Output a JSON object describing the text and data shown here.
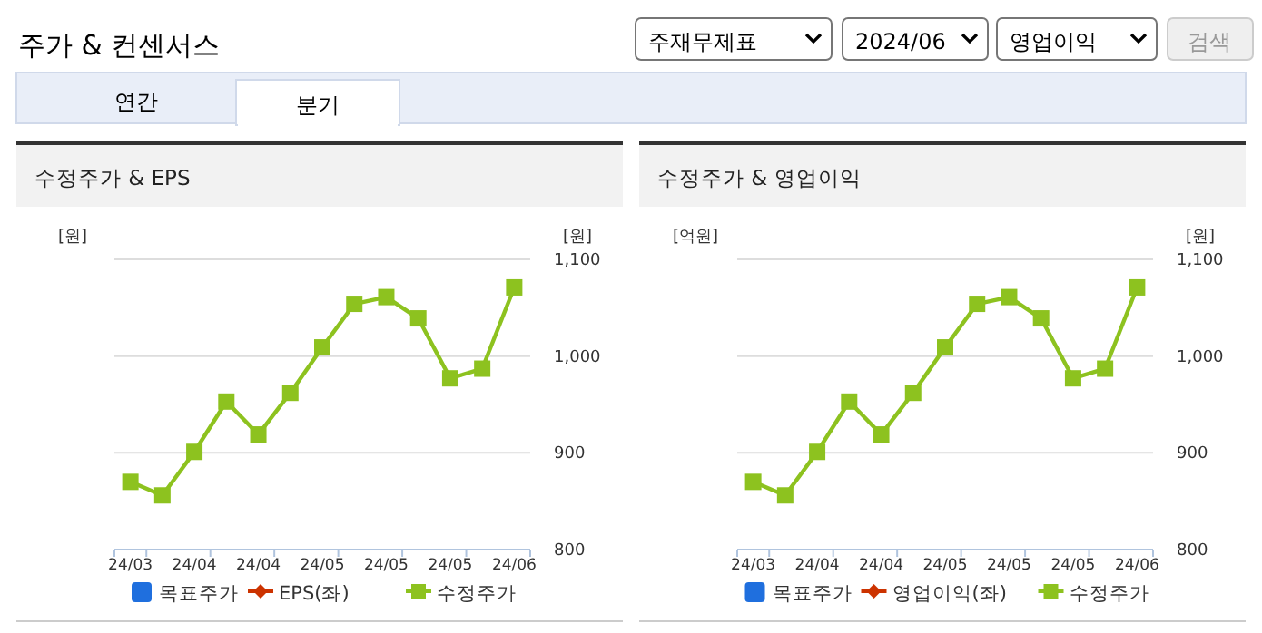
{
  "chart_data": [
    {
      "type": "other",
      "title": "주가 & 컨센서스",
      "annotations": [
        "주재무제표",
        "2024/06",
        "영업이익",
        "검색",
        "연간",
        "분기"
      ]
    },
    {
      "type": "line",
      "title": "수정주가 & EPS",
      "ylabel": "[원]",
      "y2label": "[원]",
      "categories": [
        "24/03",
        null,
        "24/04",
        null,
        "24/04",
        null,
        "24/05",
        null,
        "24/05",
        null,
        "24/05",
        null,
        "24/06"
      ],
      "series": [
        {
          "name": "목표주가",
          "color": "#1f6fde",
          "type": "bar",
          "values": [
            null,
            null,
            null,
            null,
            null,
            null,
            null,
            null,
            null,
            null,
            null,
            null,
            null
          ]
        },
        {
          "name": "EPS(좌)",
          "color": "#cc3300",
          "values": [
            null,
            null,
            null,
            null,
            null,
            null,
            null,
            null,
            null,
            null,
            null,
            null,
            null
          ]
        },
        {
          "name": "수정주가",
          "color": "#8dc21f",
          "axis": "y2",
          "values": [
            870,
            856,
            901,
            953,
            919,
            962,
            1009,
            1054,
            1061,
            1039,
            977,
            987,
            1071
          ]
        }
      ],
      "y2lim": [
        800,
        1100
      ],
      "y2ticks": [
        800,
        {
          "value": 900,
          "label": "900"
        },
        {
          "value": 1000,
          "label": "1,000"
        },
        {
          "value": 1100,
          "label": "1,100"
        }
      ],
      "grid": "y",
      "legend": "bottom",
      "marker": "square"
    },
    {
      "type": "line",
      "title": "수정주가 & 영업이익",
      "ylabel": "[억원]",
      "y2label": "[원]",
      "categories": [
        "24/03",
        null,
        "24/04",
        null,
        "24/04",
        null,
        "24/05",
        null,
        "24/05",
        null,
        "24/05",
        null,
        "24/06"
      ],
      "series": [
        {
          "name": "목표주가",
          "color": "#1f6fde",
          "type": "bar",
          "values": [
            null,
            null,
            null,
            null,
            null,
            null,
            null,
            null,
            null,
            null,
            null,
            null,
            null
          ]
        },
        {
          "name": "영업이익(좌)",
          "color": "#cc3300",
          "values": [
            null,
            null,
            null,
            null,
            null,
            null,
            null,
            null,
            null,
            null,
            null,
            null,
            null
          ]
        },
        {
          "name": "수정주가",
          "color": "#8dc21f",
          "axis": "y2",
          "values": [
            870,
            856,
            901,
            953,
            919,
            962,
            1009,
            1054,
            1061,
            1039,
            977,
            987,
            1071
          ]
        }
      ],
      "y2lim": [
        800,
        1100
      ],
      "y2ticks": [
        800,
        {
          "value": 900,
          "label": "900"
        },
        {
          "value": 1000,
          "label": "1,000"
        },
        {
          "value": 1100,
          "label": "1,100"
        }
      ],
      "grid": "y",
      "legend": "bottom",
      "marker": "square"
    }
  ]
}
